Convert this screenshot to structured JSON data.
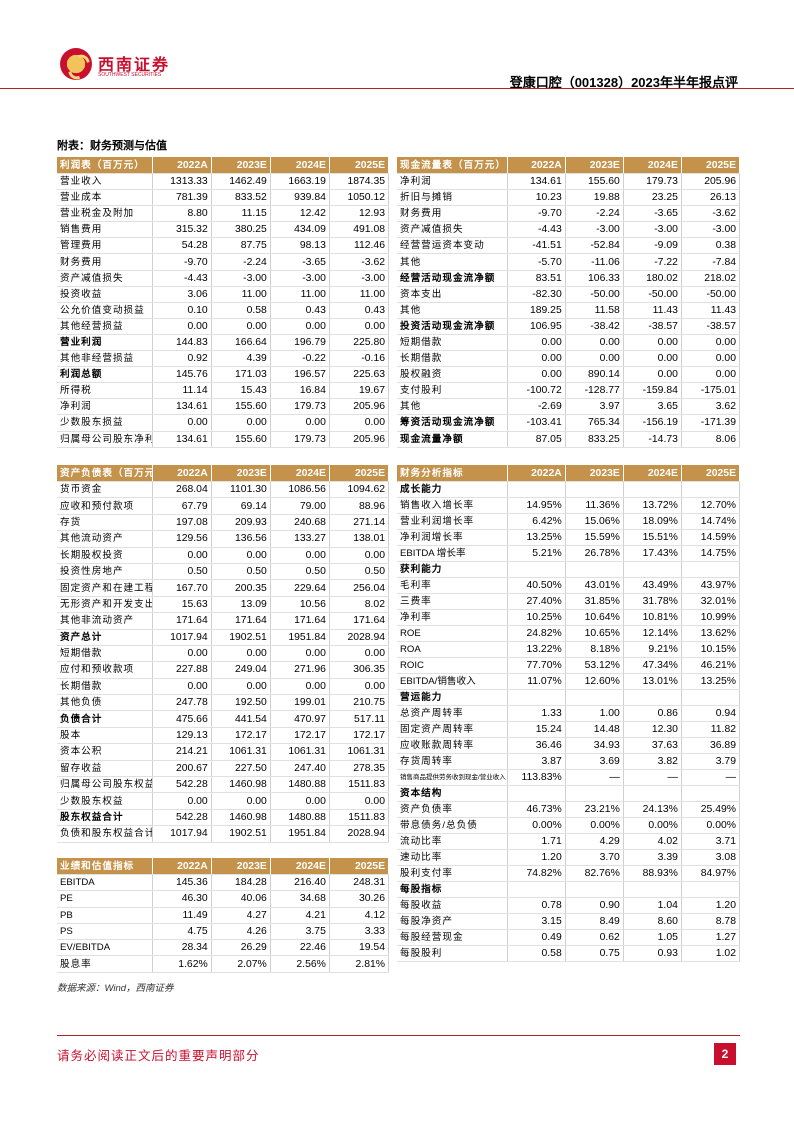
{
  "header": {
    "logo_cn": "西南证券",
    "logo_en": "SOUTHWEST SECURITIES",
    "title": "登康口腔（001328）2023年半年报点评"
  },
  "appendix_title": "附表：财务预测与估值",
  "colors": {
    "header_bg": "#c4924a",
    "brand_red": "#c8102e"
  },
  "tables": {
    "income": {
      "title": "利润表（百万元）",
      "years": [
        "2022A",
        "2023E",
        "2024E",
        "2025E"
      ],
      "rows": [
        {
          "label": "营业收入",
          "v": [
            "1313.33",
            "1462.49",
            "1663.19",
            "1874.35"
          ]
        },
        {
          "label": "营业成本",
          "v": [
            "781.39",
            "833.52",
            "939.84",
            "1050.12"
          ]
        },
        {
          "label": "营业税金及附加",
          "v": [
            "8.80",
            "11.15",
            "12.42",
            "12.93"
          ]
        },
        {
          "label": "销售费用",
          "v": [
            "315.32",
            "380.25",
            "434.09",
            "491.08"
          ]
        },
        {
          "label": "管理费用",
          "v": [
            "54.28",
            "87.75",
            "98.13",
            "112.46"
          ]
        },
        {
          "label": "财务费用",
          "v": [
            "-9.70",
            "-2.24",
            "-3.65",
            "-3.62"
          ]
        },
        {
          "label": "资产减值损失",
          "v": [
            "-4.43",
            "-3.00",
            "-3.00",
            "-3.00"
          ]
        },
        {
          "label": "投资收益",
          "v": [
            "3.06",
            "11.00",
            "11.00",
            "11.00"
          ]
        },
        {
          "label": "公允价值变动损益",
          "v": [
            "0.10",
            "0.58",
            "0.43",
            "0.43"
          ]
        },
        {
          "label": "其他经营损益",
          "v": [
            "0.00",
            "0.00",
            "0.00",
            "0.00"
          ]
        },
        {
          "label": "营业利润",
          "v": [
            "144.83",
            "166.64",
            "196.79",
            "225.80"
          ],
          "bold": true
        },
        {
          "label": "其他非经营损益",
          "v": [
            "0.92",
            "4.39",
            "-0.22",
            "-0.16"
          ]
        },
        {
          "label": "利润总额",
          "v": [
            "145.76",
            "171.03",
            "196.57",
            "225.63"
          ],
          "bold": true
        },
        {
          "label": "所得税",
          "v": [
            "11.14",
            "15.43",
            "16.84",
            "19.67"
          ]
        },
        {
          "label": "净利润",
          "v": [
            "134.61",
            "155.60",
            "179.73",
            "205.96"
          ]
        },
        {
          "label": "少数股东损益",
          "v": [
            "0.00",
            "0.00",
            "0.00",
            "0.00"
          ]
        },
        {
          "label": "归属母公司股东净利润",
          "v": [
            "134.61",
            "155.60",
            "179.73",
            "205.96"
          ]
        }
      ]
    },
    "cashflow": {
      "title": "现金流量表（百万元）",
      "years": [
        "2022A",
        "2023E",
        "2024E",
        "2025E"
      ],
      "rows": [
        {
          "label": "净利润",
          "v": [
            "134.61",
            "155.60",
            "179.73",
            "205.96"
          ]
        },
        {
          "label": "折旧与摊销",
          "v": [
            "10.23",
            "19.88",
            "23.25",
            "26.13"
          ]
        },
        {
          "label": "财务费用",
          "v": [
            "-9.70",
            "-2.24",
            "-3.65",
            "-3.62"
          ]
        },
        {
          "label": "资产减值损失",
          "v": [
            "-4.43",
            "-3.00",
            "-3.00",
            "-3.00"
          ]
        },
        {
          "label": "经营营运资本变动",
          "v": [
            "-41.51",
            "-52.84",
            "-9.09",
            "0.38"
          ]
        },
        {
          "label": "其他",
          "v": [
            "-5.70",
            "-11.06",
            "-7.22",
            "-7.84"
          ]
        },
        {
          "label": "经营活动现金流净额",
          "v": [
            "83.51",
            "106.33",
            "180.02",
            "218.02"
          ],
          "bold": true
        },
        {
          "label": "资本支出",
          "v": [
            "-82.30",
            "-50.00",
            "-50.00",
            "-50.00"
          ]
        },
        {
          "label": "其他",
          "v": [
            "189.25",
            "11.58",
            "11.43",
            "11.43"
          ]
        },
        {
          "label": "投资活动现金流净额",
          "v": [
            "106.95",
            "-38.42",
            "-38.57",
            "-38.57"
          ],
          "bold": true
        },
        {
          "label": "短期借款",
          "v": [
            "0.00",
            "0.00",
            "0.00",
            "0.00"
          ]
        },
        {
          "label": "长期借款",
          "v": [
            "0.00",
            "0.00",
            "0.00",
            "0.00"
          ]
        },
        {
          "label": "股权融资",
          "v": [
            "0.00",
            "890.14",
            "0.00",
            "0.00"
          ]
        },
        {
          "label": "支付股利",
          "v": [
            "-100.72",
            "-128.77",
            "-159.84",
            "-175.01"
          ]
        },
        {
          "label": "其他",
          "v": [
            "-2.69",
            "3.97",
            "3.65",
            "3.62"
          ]
        },
        {
          "label": "筹资活动现金流净额",
          "v": [
            "-103.41",
            "765.34",
            "-156.19",
            "-171.39"
          ],
          "bold": true
        },
        {
          "label": "现金流量净额",
          "v": [
            "87.05",
            "833.25",
            "-14.73",
            "8.06"
          ],
          "bold": true
        }
      ]
    },
    "balance": {
      "title": "资产负债表（百万元）",
      "years": [
        "2022A",
        "2023E",
        "2024E",
        "2025E"
      ],
      "rows": [
        {
          "label": "货币资金",
          "v": [
            "268.04",
            "1101.30",
            "1086.56",
            "1094.62"
          ]
        },
        {
          "label": "应收和预付款项",
          "v": [
            "67.79",
            "69.14",
            "79.00",
            "88.96"
          ]
        },
        {
          "label": "存货",
          "v": [
            "197.08",
            "209.93",
            "240.68",
            "271.14"
          ]
        },
        {
          "label": "其他流动资产",
          "v": [
            "129.56",
            "136.56",
            "133.27",
            "138.01"
          ]
        },
        {
          "label": "长期股权投资",
          "v": [
            "0.00",
            "0.00",
            "0.00",
            "0.00"
          ]
        },
        {
          "label": "投资性房地产",
          "v": [
            "0.50",
            "0.50",
            "0.50",
            "0.50"
          ]
        },
        {
          "label": "固定资产和在建工程",
          "v": [
            "167.70",
            "200.35",
            "229.64",
            "256.04"
          ]
        },
        {
          "label": "无形资产和开发支出",
          "v": [
            "15.63",
            "13.09",
            "10.56",
            "8.02"
          ]
        },
        {
          "label": "其他非流动资产",
          "v": [
            "171.64",
            "171.64",
            "171.64",
            "171.64"
          ]
        },
        {
          "label": "资产总计",
          "v": [
            "1017.94",
            "1902.51",
            "1951.84",
            "2028.94"
          ],
          "bold": true
        },
        {
          "label": "短期借款",
          "v": [
            "0.00",
            "0.00",
            "0.00",
            "0.00"
          ]
        },
        {
          "label": "应付和预收款项",
          "v": [
            "227.88",
            "249.04",
            "271.96",
            "306.35"
          ]
        },
        {
          "label": "长期借款",
          "v": [
            "0.00",
            "0.00",
            "0.00",
            "0.00"
          ]
        },
        {
          "label": "其他负债",
          "v": [
            "247.78",
            "192.50",
            "199.01",
            "210.75"
          ]
        },
        {
          "label": "负债合计",
          "v": [
            "475.66",
            "441.54",
            "470.97",
            "517.11"
          ],
          "bold": true
        },
        {
          "label": "股本",
          "v": [
            "129.13",
            "172.17",
            "172.17",
            "172.17"
          ]
        },
        {
          "label": "资本公积",
          "v": [
            "214.21",
            "1061.31",
            "1061.31",
            "1061.31"
          ]
        },
        {
          "label": "留存收益",
          "v": [
            "200.67",
            "227.50",
            "247.40",
            "278.35"
          ]
        },
        {
          "label": "归属母公司股东权益",
          "v": [
            "542.28",
            "1460.98",
            "1480.88",
            "1511.83"
          ]
        },
        {
          "label": "少数股东权益",
          "v": [
            "0.00",
            "0.00",
            "0.00",
            "0.00"
          ]
        },
        {
          "label": "股东权益合计",
          "v": [
            "542.28",
            "1460.98",
            "1480.88",
            "1511.83"
          ],
          "bold": true
        },
        {
          "label": "负债和股东权益合计",
          "v": [
            "1017.94",
            "1902.51",
            "1951.84",
            "2028.94"
          ]
        }
      ]
    },
    "valuation": {
      "title": "业绩和估值指标",
      "years": [
        "2022A",
        "2023E",
        "2024E",
        "2025E"
      ],
      "rows": [
        {
          "label": "EBITDA",
          "v": [
            "145.36",
            "184.28",
            "216.40",
            "248.31"
          ]
        },
        {
          "label": "PE",
          "v": [
            "46.30",
            "40.06",
            "34.68",
            "30.26"
          ]
        },
        {
          "label": "PB",
          "v": [
            "11.49",
            "4.27",
            "4.21",
            "4.12"
          ]
        },
        {
          "label": "PS",
          "v": [
            "4.75",
            "4.26",
            "3.75",
            "3.33"
          ]
        },
        {
          "label": "EV/EBITDA",
          "v": [
            "28.34",
            "26.29",
            "22.46",
            "19.54"
          ]
        },
        {
          "label": "股息率",
          "v": [
            "1.62%",
            "2.07%",
            "2.56%",
            "2.81%"
          ]
        }
      ]
    },
    "ratios": {
      "title": "财务分析指标",
      "years": [
        "2022A",
        "2023E",
        "2024E",
        "2025E"
      ],
      "rows": [
        {
          "label": "成长能力",
          "v": [
            "",
            "",
            "",
            ""
          ],
          "bold": true
        },
        {
          "label": "销售收入增长率",
          "v": [
            "14.95%",
            "11.36%",
            "13.72%",
            "12.70%"
          ]
        },
        {
          "label": "营业利润增长率",
          "v": [
            "6.42%",
            "15.06%",
            "18.09%",
            "14.74%"
          ]
        },
        {
          "label": "净利润增长率",
          "v": [
            "13.25%",
            "15.59%",
            "15.51%",
            "14.59%"
          ]
        },
        {
          "label": "EBITDA 增长率",
          "v": [
            "5.21%",
            "26.78%",
            "17.43%",
            "14.75%"
          ]
        },
        {
          "label": "获利能力",
          "v": [
            "",
            "",
            "",
            ""
          ],
          "bold": true
        },
        {
          "label": "毛利率",
          "v": [
            "40.50%",
            "43.01%",
            "43.49%",
            "43.97%"
          ]
        },
        {
          "label": "三费率",
          "v": [
            "27.40%",
            "31.85%",
            "31.78%",
            "32.01%"
          ]
        },
        {
          "label": "净利率",
          "v": [
            "10.25%",
            "10.64%",
            "10.81%",
            "10.99%"
          ]
        },
        {
          "label": "ROE",
          "v": [
            "24.82%",
            "10.65%",
            "12.14%",
            "13.62%"
          ]
        },
        {
          "label": "ROA",
          "v": [
            "13.22%",
            "8.18%",
            "9.21%",
            "10.15%"
          ]
        },
        {
          "label": "ROIC",
          "v": [
            "77.70%",
            "53.12%",
            "47.34%",
            "46.21%"
          ]
        },
        {
          "label": "EBITDA/销售收入",
          "v": [
            "11.07%",
            "12.60%",
            "13.01%",
            "13.25%"
          ]
        },
        {
          "label": "营运能力",
          "v": [
            "",
            "",
            "",
            ""
          ],
          "bold": true
        },
        {
          "label": "总资产周转率",
          "v": [
            "1.33",
            "1.00",
            "0.86",
            "0.94"
          ]
        },
        {
          "label": "固定资产周转率",
          "v": [
            "15.24",
            "14.48",
            "12.30",
            "11.82"
          ]
        },
        {
          "label": "应收账款周转率",
          "v": [
            "36.46",
            "34.93",
            "37.63",
            "36.89"
          ]
        },
        {
          "label": "存货周转率",
          "v": [
            "3.87",
            "3.69",
            "3.82",
            "3.79"
          ]
        },
        {
          "label": "销售商品提供劳务收到现金/营业收入",
          "v": [
            "113.83%",
            "—",
            "—",
            "—"
          ],
          "small": true
        },
        {
          "label": "资本结构",
          "v": [
            "",
            "",
            "",
            ""
          ],
          "bold": true
        },
        {
          "label": "资产负债率",
          "v": [
            "46.73%",
            "23.21%",
            "24.13%",
            "25.49%"
          ]
        },
        {
          "label": "带息债务/总负债",
          "v": [
            "0.00%",
            "0.00%",
            "0.00%",
            "0.00%"
          ]
        },
        {
          "label": "流动比率",
          "v": [
            "1.71",
            "4.29",
            "4.02",
            "3.71"
          ]
        },
        {
          "label": "速动比率",
          "v": [
            "1.20",
            "3.70",
            "3.39",
            "3.08"
          ]
        },
        {
          "label": "股利支付率",
          "v": [
            "74.82%",
            "82.76%",
            "88.93%",
            "84.97%"
          ]
        },
        {
          "label": "每股指标",
          "v": [
            "",
            "",
            "",
            ""
          ],
          "bold": true
        },
        {
          "label": "每股收益",
          "v": [
            "0.78",
            "0.90",
            "1.04",
            "1.20"
          ]
        },
        {
          "label": "每股净资产",
          "v": [
            "3.15",
            "8.49",
            "8.60",
            "8.78"
          ]
        },
        {
          "label": "每股经营现金",
          "v": [
            "0.49",
            "0.62",
            "1.05",
            "1.27"
          ]
        },
        {
          "label": "每股股利",
          "v": [
            "0.58",
            "0.75",
            "0.93",
            "1.02"
          ]
        }
      ]
    }
  },
  "source": "数据来源：Wind，西南证券",
  "footer": {
    "notice": "请务必阅读正文后的重要声明部分",
    "page": "2"
  }
}
